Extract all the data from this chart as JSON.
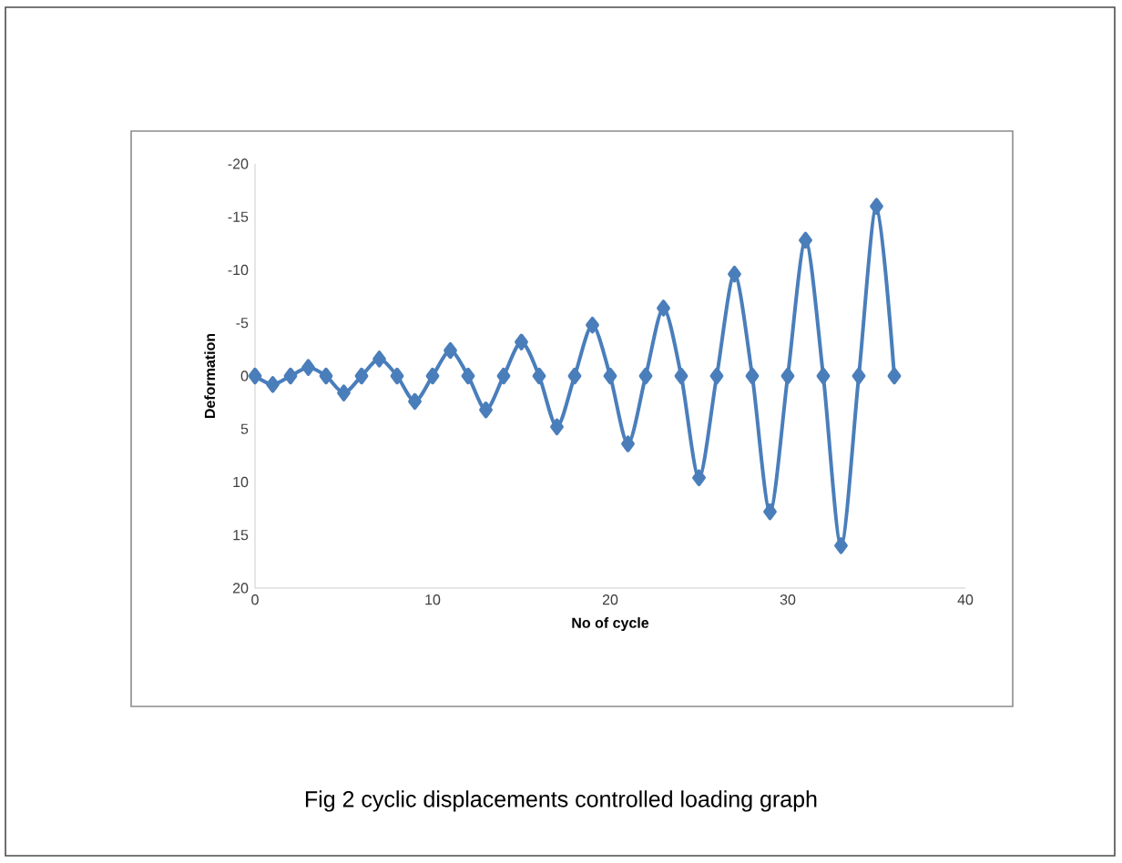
{
  "chart_data": {
    "type": "line",
    "xlabel": "No of cycle",
    "ylabel": "Deformation",
    "x": [
      0,
      1,
      2,
      3,
      4,
      5,
      6,
      7,
      8,
      9,
      10,
      11,
      12,
      13,
      14,
      15,
      16,
      17,
      18,
      19,
      20,
      21,
      22,
      23,
      24,
      25,
      26,
      27,
      28,
      29,
      30,
      31,
      32,
      33,
      34,
      35,
      36
    ],
    "series": [
      {
        "color": "#4a7ebb",
        "values": [
          0,
          0.8,
          0,
          -0.8,
          0,
          1.6,
          0,
          -1.6,
          0,
          2.4,
          0,
          -2.4,
          0,
          3.2,
          0,
          -3.2,
          0,
          4.8,
          0,
          -4.8,
          0,
          6.4,
          0,
          -6.4,
          0,
          9.6,
          0,
          -9.6,
          0,
          12.8,
          0,
          -12.8,
          0,
          16,
          0,
          -16,
          0
        ]
      }
    ],
    "xlim": [
      0,
      40
    ],
    "ylim": [
      20,
      -20
    ],
    "xticks": [
      0,
      10,
      20,
      30,
      40
    ],
    "yticks": [
      -20,
      -15,
      -10,
      -5,
      0,
      5,
      10,
      15,
      20
    ],
    "marker": "diamond",
    "line_style": "solid",
    "annotations": [
      "Fig 2 cyclic displacements controlled loading graph"
    ]
  }
}
